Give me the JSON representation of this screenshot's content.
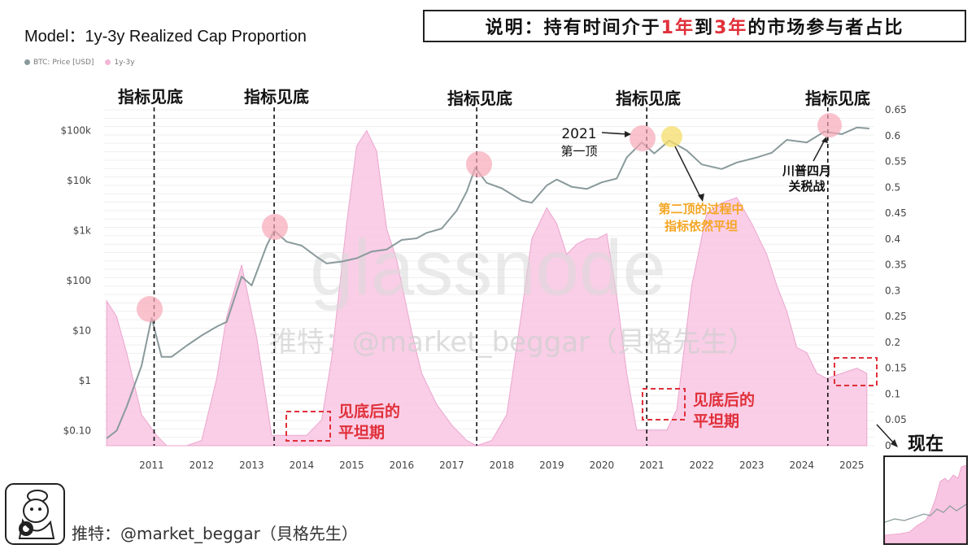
{
  "header": {
    "model_title": "Model：1y-3y Realized Cap Proportion",
    "explanation_prefix": "说明：持有时间介于",
    "explanation_hl1": "1年",
    "explanation_mid": "到",
    "explanation_hl2": "3年",
    "explanation_suffix": "的市场参与者占比"
  },
  "legend": {
    "price_label": "BTC: Price [USD]",
    "price_color": "#8a9a9c",
    "ratio_label": "1y-3y",
    "ratio_color": "#f3b5d6"
  },
  "annotations": {
    "bottom_labels": [
      "指标见底",
      "指标见底",
      "指标见底",
      "指标见底",
      "指标见底"
    ],
    "peak2021_year": "2021",
    "peak2021_text": "第一顶",
    "tariff_line1": "川普四月",
    "tariff_line2": "关税战",
    "second_top_line1": "第二顶的过程中",
    "second_top_line2": "指标依然平坦",
    "flat_line1": "见底后的",
    "flat_line2": "平坦期",
    "flat_b_line1": "见底后的",
    "flat_b_line2": "平坦期",
    "watermark_big": "glassnode",
    "watermark_handle": "推特：@market_beggar（貝格先生）",
    "now_label": "现在"
  },
  "footer": {
    "handle": "推特：@market_beggar（貝格先生）"
  },
  "colors": {
    "accent_red": "#e0303a",
    "accent_orange": "#f5a623",
    "highlight_circle": "#f7a8b8",
    "highlight_yellow": "#f4de6a",
    "area_fill": "#f8c6e2"
  },
  "chart_data": {
    "type": "area",
    "title": "1y-3y Realized Cap Proportion",
    "x_ticks": [
      "2011",
      "2012",
      "2013",
      "2014",
      "2015",
      "2016",
      "2017",
      "2018",
      "2019",
      "2020",
      "2021",
      "2022",
      "2023",
      "2024",
      "2025"
    ],
    "left_axis": {
      "label": "BTC: Price [USD]",
      "scale": "log",
      "ticks": [
        "$0.10",
        "$1",
        "$10",
        "$100",
        "$1k",
        "$10k",
        "$100k"
      ],
      "tick_values": [
        0.1,
        1,
        10,
        100,
        1000,
        10000,
        100000
      ]
    },
    "right_axis": {
      "label": "1y-3y",
      "ticks": [
        "0",
        "0.05",
        "0.1",
        "0.15",
        "0.2",
        "0.25",
        "0.3",
        "0.35",
        "0.4",
        "0.45",
        "0.5",
        "0.55",
        "0.6",
        "0.65"
      ],
      "ylim": [
        0,
        0.65
      ]
    },
    "series": [
      {
        "name": "1y-3y",
        "x": [
          2010.6,
          2010.8,
          2011.0,
          2011.3,
          2011.6,
          2011.8,
          2012.2,
          2012.5,
          2012.8,
          2013.0,
          2013.3,
          2013.6,
          2013.9,
          2014.3,
          2014.6,
          2014.9,
          2015.1,
          2015.4,
          2015.6,
          2015.8,
          2016.0,
          2016.2,
          2016.4,
          2016.7,
          2016.9,
          2017.2,
          2017.5,
          2017.8,
          2018.0,
          2018.3,
          2018.6,
          2018.9,
          2019.1,
          2019.4,
          2019.6,
          2019.8,
          2020.0,
          2020.2,
          2020.4,
          2020.6,
          2020.8,
          2021.0,
          2021.2,
          2021.5,
          2021.8,
          2022.0,
          2022.3,
          2022.6,
          2022.9,
          2023.2,
          2023.5,
          2023.8,
          2024.0,
          2024.2,
          2024.4,
          2024.6,
          2024.8,
          2025.0,
          2025.3,
          2025.6,
          2025.8
        ],
        "values": [
          0.28,
          0.25,
          0.18,
          0.06,
          0.02,
          0.0,
          0.0,
          0.01,
          0.13,
          0.25,
          0.35,
          0.21,
          0.02,
          0.02,
          0.02,
          0.05,
          0.17,
          0.43,
          0.58,
          0.61,
          0.57,
          0.42,
          0.36,
          0.22,
          0.14,
          0.08,
          0.04,
          0.01,
          0.0,
          0.01,
          0.06,
          0.26,
          0.4,
          0.46,
          0.43,
          0.37,
          0.39,
          0.4,
          0.4,
          0.41,
          0.29,
          0.14,
          0.03,
          0.03,
          0.03,
          0.07,
          0.31,
          0.45,
          0.47,
          0.48,
          0.43,
          0.37,
          0.31,
          0.26,
          0.19,
          0.18,
          0.14,
          0.13,
          0.14,
          0.15,
          0.14
        ]
      },
      {
        "name": "BTC: Price [USD]",
        "x": [
          2010.6,
          2010.8,
          2011.0,
          2011.3,
          2011.5,
          2011.7,
          2011.9,
          2012.2,
          2012.5,
          2012.8,
          2013.0,
          2013.3,
          2013.5,
          2013.8,
          2013.95,
          2014.2,
          2014.5,
          2014.8,
          2015.0,
          2015.3,
          2015.6,
          2015.9,
          2016.2,
          2016.5,
          2016.8,
          2017.0,
          2017.3,
          2017.6,
          2017.8,
          2017.97,
          2018.2,
          2018.5,
          2018.9,
          2019.1,
          2019.4,
          2019.6,
          2019.9,
          2020.2,
          2020.5,
          2020.8,
          2021.0,
          2021.3,
          2021.55,
          2021.85,
          2022.2,
          2022.5,
          2022.9,
          2023.2,
          2023.6,
          2023.9,
          2024.2,
          2024.6,
          2024.95,
          2025.3,
          2025.6,
          2025.85
        ],
        "values": [
          0.07,
          0.1,
          0.3,
          2,
          18,
          3,
          3,
          5,
          8,
          12,
          15,
          120,
          80,
          500,
          1000,
          600,
          500,
          300,
          220,
          240,
          280,
          380,
          420,
          650,
          700,
          900,
          1100,
          2500,
          6000,
          18000,
          9000,
          7000,
          4000,
          3600,
          8000,
          10500,
          7500,
          6800,
          9200,
          11000,
          29000,
          58000,
          35000,
          63000,
          40000,
          21000,
          17000,
          23000,
          29000,
          36000,
          65000,
          58000,
          95000,
          85000,
          115000,
          110000
        ]
      }
    ]
  }
}
